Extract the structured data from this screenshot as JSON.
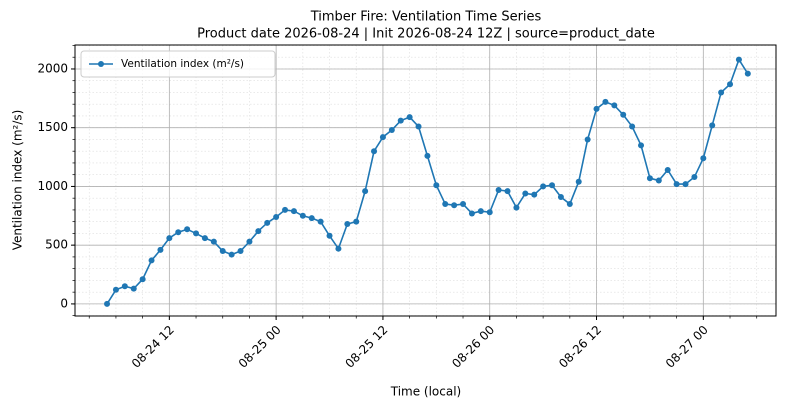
{
  "chart_data": {
    "type": "line",
    "title": "Timber Fire: Ventilation Time Series",
    "subtitle": "Product date 2026-08-24 | Init 2026-08-24 12Z | source=product_date",
    "x_label": "Time (local)",
    "y_label": "Ventilation index (m²/s)",
    "x": [
      "08-24 05",
      "08-24 06",
      "08-24 07",
      "08-24 08",
      "08-24 09",
      "08-24 10",
      "08-24 11",
      "08-24 12",
      "08-24 13",
      "08-24 14",
      "08-24 15",
      "08-24 16",
      "08-24 17",
      "08-24 18",
      "08-24 19",
      "08-24 20",
      "08-24 21",
      "08-24 22",
      "08-24 23",
      "08-25 00",
      "08-25 01",
      "08-25 02",
      "08-25 03",
      "08-25 04",
      "08-25 05",
      "08-25 06",
      "08-25 07",
      "08-25 08",
      "08-25 09",
      "08-25 10",
      "08-25 11",
      "08-25 12",
      "08-25 13",
      "08-25 14",
      "08-25 15",
      "08-25 16",
      "08-25 17",
      "08-25 18",
      "08-25 19",
      "08-25 20",
      "08-25 21",
      "08-25 22",
      "08-25 23",
      "08-26 00",
      "08-26 01",
      "08-26 02",
      "08-26 03",
      "08-26 04",
      "08-26 05",
      "08-26 06",
      "08-26 07",
      "08-26 08",
      "08-26 09",
      "08-26 10",
      "08-26 11",
      "08-26 12",
      "08-26 13",
      "08-26 14",
      "08-26 15",
      "08-26 16",
      "08-26 17",
      "08-26 18",
      "08-26 19",
      "08-26 20",
      "08-26 21",
      "08-26 22",
      "08-26 23",
      "08-27 00",
      "08-27 01",
      "08-27 02",
      "08-27 03",
      "08-27 04",
      "08-27 05"
    ],
    "series": [
      {
        "name": "Ventilation index (m²/s)",
        "color": "#1f77b4",
        "values": [
          0,
          120,
          150,
          130,
          210,
          370,
          460,
          560,
          610,
          635,
          600,
          560,
          530,
          450,
          420,
          450,
          530,
          620,
          690,
          740,
          800,
          790,
          750,
          730,
          700,
          580,
          470,
          680,
          700,
          960,
          1300,
          1420,
          1480,
          1560,
          1590,
          1510,
          1260,
          1010,
          850,
          840,
          850,
          770,
          790,
          780,
          970,
          960,
          820,
          940,
          930,
          1000,
          1010,
          910,
          850,
          1040,
          1400,
          1660,
          1720,
          1690,
          1610,
          1510,
          1350,
          1070,
          1050,
          1140,
          1020,
          1020,
          1080,
          1240,
          1520,
          1800,
          1870,
          2080,
          1960
        ]
      }
    ],
    "xlim": [
      "08-24 01:24",
      "08-27 08:10"
    ],
    "xticks": [
      "08-24 12",
      "08-25 00",
      "08-25 12",
      "08-26 00",
      "08-26 12",
      "08-27 00"
    ],
    "ylim": [
      -103,
      2204
    ],
    "yticks": [
      0,
      500,
      1000,
      1500,
      2000
    ],
    "grid": true,
    "legend": "upper left"
  }
}
